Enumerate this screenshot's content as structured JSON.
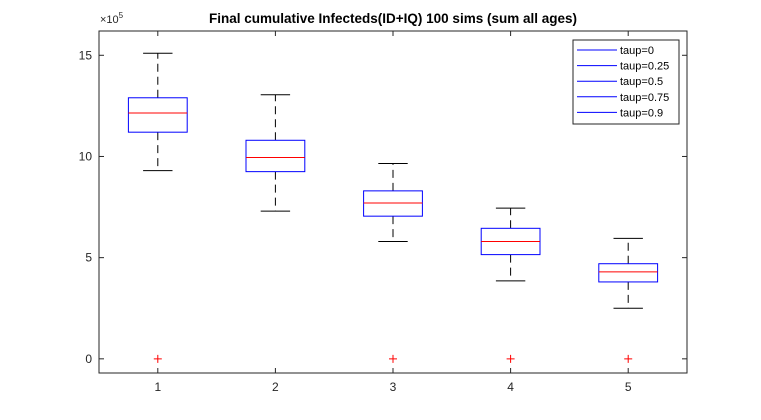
{
  "chart_data": {
    "type": "box",
    "title": "Final cumulative Infecteds(ID+IQ) 100 sims (sum all ages)",
    "xlabel": "",
    "ylabel": "",
    "y_exponent": "×10",
    "y_exponent_power": "5",
    "categories": [
      "1",
      "2",
      "3",
      "4",
      "5"
    ],
    "xlim": [
      0.5,
      5.5
    ],
    "ylim": [
      -0.7,
      16.2
    ],
    "y_ticks": [
      0,
      5,
      10,
      15
    ],
    "y_tick_labels": [
      "0",
      "5",
      "10",
      "15"
    ],
    "boxes": [
      {
        "category": "1",
        "whisker_low": 9.3,
        "q1": 11.2,
        "median": 12.15,
        "q3": 12.9,
        "whisker_high": 15.1,
        "outliers": [
          0
        ]
      },
      {
        "category": "2",
        "whisker_low": 7.3,
        "q1": 9.25,
        "median": 9.95,
        "q3": 10.8,
        "whisker_high": 13.05,
        "outliers": []
      },
      {
        "category": "3",
        "whisker_low": 5.8,
        "q1": 7.05,
        "median": 7.7,
        "q3": 8.3,
        "whisker_high": 9.65,
        "outliers": [
          0
        ]
      },
      {
        "category": "4",
        "whisker_low": 3.85,
        "q1": 5.15,
        "median": 5.8,
        "q3": 6.45,
        "whisker_high": 7.45,
        "outliers": [
          0
        ]
      },
      {
        "category": "5",
        "whisker_low": 2.5,
        "q1": 3.8,
        "median": 4.3,
        "q3": 4.7,
        "whisker_high": 5.95,
        "outliers": [
          0
        ]
      }
    ],
    "legend_position": "top-right",
    "legend": [
      "taup=0",
      "taup=0.25",
      "taup=0.5",
      "taup=0.75",
      "taup=0.9"
    ],
    "colors": {
      "box": "#0000ff",
      "median": "#ff0000",
      "whisker": "#000000",
      "outlier": "#ff0000",
      "axis": "#262626",
      "legend_line": "#0000ff"
    }
  }
}
